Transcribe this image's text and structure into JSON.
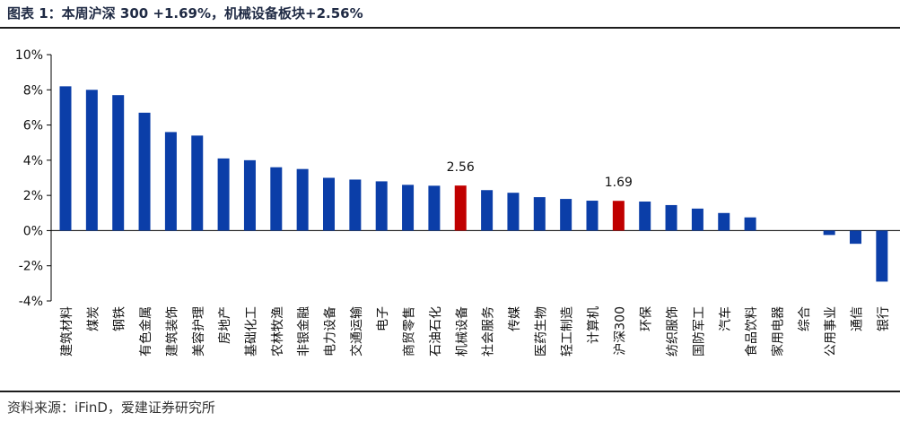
{
  "title": "图表 1：本周沪深 300 +1.69%，机械设备板块+2.56%",
  "source": "资料来源：iFinD，爱建证券研究所",
  "colors": {
    "bar": "#0b3ea8",
    "highlight": "#c00000"
  },
  "chart_data": {
    "type": "bar",
    "categories": [
      "建筑材料",
      "煤炭",
      "钢铁",
      "有色金属",
      "建筑装饰",
      "美容护理",
      "房地产",
      "基础化工",
      "农林牧渔",
      "非银金融",
      "电力设备",
      "交通运输",
      "电子",
      "商贸零售",
      "石油石化",
      "机械设备",
      "社会服务",
      "传媒",
      "医药生物",
      "轻工制造",
      "计算机",
      "沪深300",
      "环保",
      "纺织服饰",
      "国防军工",
      "汽车",
      "食品饮料",
      "家用电器",
      "综合",
      "公用事业",
      "通信",
      "银行"
    ],
    "values": [
      8.2,
      8.0,
      7.7,
      6.7,
      5.6,
      5.4,
      4.1,
      4.0,
      3.6,
      3.5,
      3.0,
      2.9,
      2.8,
      2.6,
      2.55,
      2.56,
      2.3,
      2.15,
      1.9,
      1.8,
      1.7,
      1.69,
      1.65,
      1.45,
      1.25,
      1.0,
      0.75,
      0.0,
      0.0,
      -0.25,
      -0.75,
      -2.9
    ],
    "highlight": [
      "机械设备",
      "沪深300"
    ],
    "data_labels": [
      {
        "category": "机械设备",
        "text": "2.56"
      },
      {
        "category": "沪深300",
        "text": "1.69"
      }
    ],
    "ylim": [
      -4,
      10
    ],
    "yticks": [
      "-4%",
      "-2%",
      "0%",
      "2%",
      "4%",
      "6%",
      "8%",
      "10%"
    ],
    "ytick_values": [
      -4,
      -2,
      0,
      2,
      4,
      6,
      8,
      10
    ],
    "grid": false,
    "legend": "none"
  }
}
